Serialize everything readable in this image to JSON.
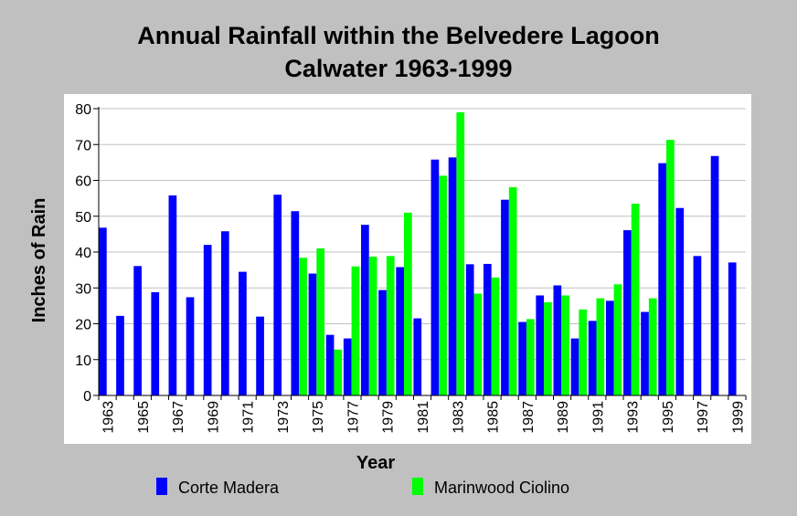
{
  "colors": {
    "corte_madera": "#0000ff",
    "marinwood_ciolino": "#00ff00",
    "background": "#c0c0c0",
    "plot_bg": "#ffffff",
    "grid": "#c0c0c0"
  },
  "chart_data": {
    "type": "bar",
    "title": "Annual Rainfall within the Belvedere Lagoon",
    "subtitle": "Calwater 1963-1999",
    "xlabel": "Year",
    "ylabel": "Inches of Rain",
    "ylim": [
      0,
      80
    ],
    "yticks": [
      0,
      10,
      20,
      30,
      40,
      50,
      60,
      70,
      80
    ],
    "grid": "horizontal",
    "legend_position": "bottom",
    "categories": [
      1963,
      1964,
      1965,
      1966,
      1967,
      1968,
      1969,
      1970,
      1971,
      1972,
      1973,
      1974,
      1975,
      1976,
      1977,
      1978,
      1979,
      1980,
      1981,
      1982,
      1983,
      1984,
      1985,
      1986,
      1987,
      1988,
      1989,
      1990,
      1991,
      1992,
      1993,
      1994,
      1995,
      1996,
      1997,
      1998,
      1999
    ],
    "xtick_labels": [
      "1963",
      "1965",
      "1967",
      "1969",
      "1971",
      "1973",
      "1975",
      "1977",
      "1979",
      "1981",
      "1983",
      "1985",
      "1987",
      "1989",
      "1991",
      "1993",
      "1995",
      "1997",
      "1999"
    ],
    "series": [
      {
        "name": "Corte Madera",
        "values": [
          46.8,
          22.2,
          36.1,
          28.8,
          55.8,
          27.4,
          42.0,
          45.8,
          34.5,
          22.0,
          56.0,
          51.4,
          34.0,
          16.9,
          15.9,
          47.6,
          29.4,
          35.8,
          21.5,
          65.8,
          66.4,
          36.6,
          36.7,
          54.6,
          20.5,
          27.9,
          30.7,
          15.9,
          20.8,
          26.4,
          46.1,
          23.3,
          64.8,
          52.3,
          38.9,
          66.8,
          37.1
        ]
      },
      {
        "name": "Marinwood Ciolino",
        "values": [
          null,
          null,
          null,
          null,
          null,
          null,
          null,
          null,
          null,
          null,
          null,
          38.4,
          41.0,
          12.8,
          36.0,
          38.7,
          38.9,
          51.0,
          null,
          61.3,
          79.0,
          28.4,
          32.9,
          58.1,
          21.3,
          26.0,
          27.9,
          24.0,
          27.1,
          31.0,
          53.5,
          27.1,
          71.3,
          null,
          null,
          null,
          null
        ]
      }
    ]
  }
}
